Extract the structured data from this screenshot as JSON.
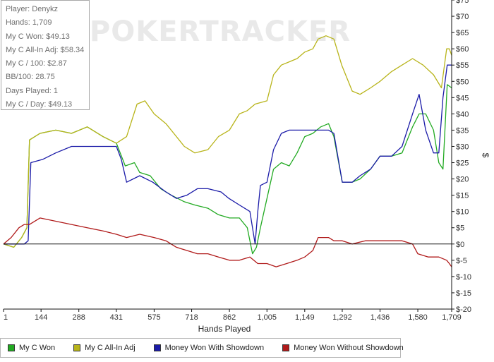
{
  "watermark": "POKERTRACKER",
  "stats": [
    "Player: Denykz",
    "Hands: 1,709",
    "My C Won: $49.13",
    "My C All-In Adj: $58.34",
    "My C / 100: $2.87",
    "BB/100: 28.75",
    "Days Played: 1",
    "My C / Day: $49.13"
  ],
  "legend": [
    {
      "label": "My C Won",
      "color": "#22aa22"
    },
    {
      "label": "My C All-In Adj",
      "color": "#b8b41a"
    },
    {
      "label": "Money Won With Showdown",
      "color": "#1a1aa8"
    },
    {
      "label": "Money Won Without Showdown",
      "color": "#b01a1a"
    }
  ],
  "chart_data": {
    "type": "line",
    "xlabel": "Hands Played",
    "ylabel": "$",
    "xlim": [
      1,
      1709
    ],
    "ylim": [
      -20,
      75
    ],
    "x_ticks": [
      1,
      144,
      288,
      431,
      575,
      718,
      862,
      1005,
      1149,
      1292,
      1436,
      1580,
      1709
    ],
    "x_tick_labels": [
      "1",
      "144",
      "288",
      "431",
      "575",
      "718",
      "862",
      "1,005",
      "1,149",
      "1,292",
      "1,436",
      "1,580",
      "1,709"
    ],
    "y_ticks": [
      -20,
      -15,
      -10,
      -5,
      0,
      5,
      10,
      15,
      20,
      25,
      30,
      35,
      40,
      45,
      50,
      55,
      60,
      65,
      70,
      75
    ],
    "y_tick_labels": [
      "$-20",
      "$-15",
      "$-10",
      "$-5",
      "$0",
      "$5",
      "$10",
      "$15",
      "$20",
      "$25",
      "$30",
      "$35",
      "$40",
      "$45",
      "$50",
      "$55",
      "$60",
      "$65",
      "$70",
      "$75"
    ],
    "y_axis_side": "right",
    "grid": false,
    "legend_position": "bottom",
    "series": [
      {
        "name": "My C Won",
        "color": "#22aa22",
        "points": [
          [
            1,
            0
          ],
          [
            40,
            -1
          ],
          [
            70,
            2
          ],
          [
            90,
            5
          ],
          [
            100,
            32
          ],
          [
            140,
            34
          ],
          [
            200,
            35
          ],
          [
            260,
            34
          ],
          [
            320,
            36
          ],
          [
            380,
            33
          ],
          [
            431,
            31
          ],
          [
            465,
            24
          ],
          [
            500,
            25
          ],
          [
            520,
            22
          ],
          [
            560,
            21
          ],
          [
            600,
            17
          ],
          [
            640,
            15
          ],
          [
            690,
            13
          ],
          [
            730,
            12
          ],
          [
            780,
            11
          ],
          [
            820,
            9
          ],
          [
            862,
            8
          ],
          [
            900,
            8
          ],
          [
            930,
            5
          ],
          [
            950,
            -3
          ],
          [
            965,
            -1
          ],
          [
            980,
            5
          ],
          [
            1005,
            14
          ],
          [
            1030,
            23
          ],
          [
            1060,
            25
          ],
          [
            1090,
            24
          ],
          [
            1120,
            28
          ],
          [
            1149,
            33
          ],
          [
            1180,
            34
          ],
          [
            1210,
            36
          ],
          [
            1240,
            37
          ],
          [
            1260,
            33
          ],
          [
            1292,
            19
          ],
          [
            1330,
            19
          ],
          [
            1360,
            20
          ],
          [
            1400,
            23
          ],
          [
            1436,
            27
          ],
          [
            1480,
            27
          ],
          [
            1520,
            28
          ],
          [
            1560,
            36
          ],
          [
            1585,
            40
          ],
          [
            1610,
            40
          ],
          [
            1640,
            35
          ],
          [
            1660,
            25
          ],
          [
            1676,
            23
          ],
          [
            1692,
            49
          ],
          [
            1709,
            48
          ]
        ]
      },
      {
        "name": "My C All-In Adj",
        "color": "#b8b41a",
        "points": [
          [
            1,
            0
          ],
          [
            40,
            -1
          ],
          [
            70,
            2
          ],
          [
            90,
            5
          ],
          [
            100,
            32
          ],
          [
            140,
            34
          ],
          [
            200,
            35
          ],
          [
            260,
            34
          ],
          [
            320,
            36
          ],
          [
            380,
            33
          ],
          [
            431,
            31
          ],
          [
            470,
            33
          ],
          [
            510,
            43
          ],
          [
            540,
            44
          ],
          [
            575,
            40
          ],
          [
            620,
            37
          ],
          [
            650,
            34
          ],
          [
            690,
            30
          ],
          [
            730,
            28
          ],
          [
            780,
            29
          ],
          [
            820,
            33
          ],
          [
            862,
            35
          ],
          [
            900,
            40
          ],
          [
            930,
            41
          ],
          [
            960,
            43
          ],
          [
            1005,
            44
          ],
          [
            1030,
            52
          ],
          [
            1060,
            55
          ],
          [
            1090,
            56
          ],
          [
            1120,
            57
          ],
          [
            1149,
            59
          ],
          [
            1180,
            60
          ],
          [
            1200,
            63
          ],
          [
            1230,
            64
          ],
          [
            1260,
            63
          ],
          [
            1290,
            55
          ],
          [
            1330,
            47
          ],
          [
            1360,
            46
          ],
          [
            1400,
            48
          ],
          [
            1436,
            50
          ],
          [
            1480,
            53
          ],
          [
            1520,
            55
          ],
          [
            1560,
            57
          ],
          [
            1600,
            55
          ],
          [
            1640,
            52
          ],
          [
            1670,
            48
          ],
          [
            1690,
            60
          ],
          [
            1700,
            60
          ],
          [
            1709,
            58
          ]
        ]
      },
      {
        "name": "Money Won With Showdown",
        "color": "#1a1aa8",
        "points": [
          [
            1,
            0
          ],
          [
            60,
            0
          ],
          [
            80,
            0
          ],
          [
            95,
            1
          ],
          [
            105,
            25
          ],
          [
            150,
            26
          ],
          [
            200,
            28
          ],
          [
            260,
            30
          ],
          [
            320,
            30
          ],
          [
            380,
            30
          ],
          [
            431,
            30
          ],
          [
            450,
            26
          ],
          [
            470,
            19
          ],
          [
            520,
            21
          ],
          [
            570,
            19
          ],
          [
            620,
            16
          ],
          [
            660,
            14
          ],
          [
            700,
            15
          ],
          [
            740,
            17
          ],
          [
            780,
            17
          ],
          [
            830,
            16
          ],
          [
            860,
            14
          ],
          [
            900,
            12
          ],
          [
            940,
            10
          ],
          [
            960,
            0
          ],
          [
            970,
            10
          ],
          [
            980,
            18
          ],
          [
            1005,
            19
          ],
          [
            1030,
            29
          ],
          [
            1060,
            34
          ],
          [
            1090,
            35
          ],
          [
            1149,
            35
          ],
          [
            1200,
            35
          ],
          [
            1240,
            35
          ],
          [
            1260,
            34
          ],
          [
            1292,
            19
          ],
          [
            1330,
            19
          ],
          [
            1360,
            21
          ],
          [
            1400,
            23
          ],
          [
            1436,
            27
          ],
          [
            1480,
            27
          ],
          [
            1520,
            30
          ],
          [
            1560,
            40
          ],
          [
            1585,
            46
          ],
          [
            1610,
            35
          ],
          [
            1640,
            28
          ],
          [
            1660,
            28
          ],
          [
            1676,
            45
          ],
          [
            1692,
            55
          ],
          [
            1709,
            55
          ]
        ]
      },
      {
        "name": "Money Won Without Showdown",
        "color": "#b01a1a",
        "points": [
          [
            1,
            0
          ],
          [
            30,
            2
          ],
          [
            60,
            5
          ],
          [
            80,
            6
          ],
          [
            100,
            6
          ],
          [
            140,
            8
          ],
          [
            200,
            7
          ],
          [
            260,
            6
          ],
          [
            320,
            5
          ],
          [
            380,
            4
          ],
          [
            431,
            3
          ],
          [
            470,
            2
          ],
          [
            520,
            3
          ],
          [
            575,
            2
          ],
          [
            620,
            1
          ],
          [
            660,
            -1
          ],
          [
            700,
            -2
          ],
          [
            740,
            -3
          ],
          [
            780,
            -3
          ],
          [
            820,
            -4
          ],
          [
            862,
            -5
          ],
          [
            900,
            -5
          ],
          [
            940,
            -4
          ],
          [
            970,
            -6
          ],
          [
            1005,
            -6
          ],
          [
            1040,
            -7
          ],
          [
            1080,
            -6
          ],
          [
            1120,
            -5
          ],
          [
            1149,
            -4
          ],
          [
            1180,
            -2
          ],
          [
            1200,
            2
          ],
          [
            1240,
            2
          ],
          [
            1260,
            1
          ],
          [
            1292,
            1
          ],
          [
            1330,
            0
          ],
          [
            1380,
            1
          ],
          [
            1436,
            1
          ],
          [
            1480,
            1
          ],
          [
            1520,
            1
          ],
          [
            1560,
            0
          ],
          [
            1580,
            -3
          ],
          [
            1620,
            -4
          ],
          [
            1660,
            -4
          ],
          [
            1690,
            -5
          ],
          [
            1700,
            -6
          ],
          [
            1709,
            -7
          ]
        ]
      }
    ]
  }
}
